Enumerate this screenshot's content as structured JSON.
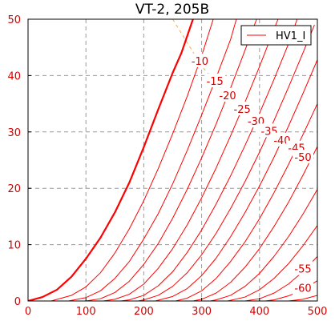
{
  "chart_data": {
    "type": "line",
    "title": "VT-2, 205B",
    "xlabel": "",
    "ylabel": "",
    "xlim": [
      0,
      500
    ],
    "ylim": [
      0,
      50
    ],
    "xticks": [
      0,
      100,
      200,
      300,
      400,
      500
    ],
    "yticks": [
      0,
      10,
      20,
      30,
      40,
      50
    ],
    "grid": true,
    "legend": {
      "position": "top-right",
      "entries": [
        "HV1_I"
      ]
    },
    "colors": {
      "curve": "#ff0000",
      "label": "#d40000",
      "dissipation": "#f0b040",
      "grid": "#9a9a9a"
    },
    "series": [
      {
        "name": "HV1_I",
        "curve_label": "",
        "points": [
          [
            0,
            0
          ],
          [
            25,
            0.7
          ],
          [
            50,
            2
          ],
          [
            75,
            4.3
          ],
          [
            100,
            7.5
          ],
          [
            125,
            11.2
          ],
          [
            150,
            15.7
          ],
          [
            175,
            21
          ],
          [
            200,
            27.3
          ],
          [
            225,
            34
          ],
          [
            250,
            40.5
          ],
          [
            265,
            44
          ],
          [
            275,
            47
          ],
          [
            285,
            50
          ]
        ]
      },
      {
        "curve_label": "-10",
        "points": [
          [
            40,
            0
          ],
          [
            75,
            1
          ],
          [
            100,
            2.5
          ],
          [
            125,
            5
          ],
          [
            150,
            8.5
          ],
          [
            175,
            12.8
          ],
          [
            200,
            17.8
          ],
          [
            225,
            23.5
          ],
          [
            250,
            29.7
          ],
          [
            275,
            36.3
          ],
          [
            300,
            43.5
          ],
          [
            320,
            50
          ]
        ]
      },
      {
        "curve_label": "-15",
        "points": [
          [
            70,
            0
          ],
          [
            100,
            0.6
          ],
          [
            125,
            1.8
          ],
          [
            150,
            4
          ],
          [
            175,
            7
          ],
          [
            200,
            11
          ],
          [
            225,
            15.5
          ],
          [
            250,
            20.8
          ],
          [
            275,
            26.7
          ],
          [
            300,
            33
          ],
          [
            325,
            39.6
          ],
          [
            350,
            46.4
          ],
          [
            360,
            50
          ]
        ]
      },
      {
        "curve_label": "-20",
        "points": [
          [
            100,
            0
          ],
          [
            125,
            0.4
          ],
          [
            150,
            1.5
          ],
          [
            175,
            3.5
          ],
          [
            200,
            6.5
          ],
          [
            225,
            10.2
          ],
          [
            250,
            14.7
          ],
          [
            275,
            19.8
          ],
          [
            300,
            25.4
          ],
          [
            325,
            31.4
          ],
          [
            350,
            37.8
          ],
          [
            375,
            44.5
          ],
          [
            395,
            50
          ]
        ]
      },
      {
        "curve_label": "-25",
        "points": [
          [
            130,
            0
          ],
          [
            150,
            0.3
          ],
          [
            175,
            1.2
          ],
          [
            200,
            3
          ],
          [
            225,
            5.8
          ],
          [
            250,
            9.3
          ],
          [
            275,
            13.5
          ],
          [
            300,
            18.3
          ],
          [
            325,
            23.6
          ],
          [
            350,
            29.3
          ],
          [
            375,
            35.3
          ],
          [
            400,
            41.6
          ],
          [
            425,
            48.2
          ],
          [
            432,
            50
          ]
        ]
      },
      {
        "curve_label": "-30",
        "points": [
          [
            160,
            0
          ],
          [
            175,
            0.2
          ],
          [
            200,
            1
          ],
          [
            225,
            2.7
          ],
          [
            250,
            5.2
          ],
          [
            275,
            8.6
          ],
          [
            300,
            12.6
          ],
          [
            325,
            17.2
          ],
          [
            350,
            22.2
          ],
          [
            375,
            27.6
          ],
          [
            400,
            33.3
          ],
          [
            425,
            39.3
          ],
          [
            450,
            45.6
          ],
          [
            465,
            50
          ]
        ]
      },
      {
        "curve_label": "-35",
        "points": [
          [
            190,
            0
          ],
          [
            200,
            0.2
          ],
          [
            225,
            1
          ],
          [
            250,
            2.6
          ],
          [
            275,
            5
          ],
          [
            300,
            8.2
          ],
          [
            325,
            12
          ],
          [
            350,
            16.4
          ],
          [
            375,
            21.2
          ],
          [
            400,
            26.4
          ],
          [
            425,
            32
          ],
          [
            450,
            37.9
          ],
          [
            475,
            44
          ],
          [
            495,
            49
          ]
        ]
      },
      {
        "curve_label": "-40",
        "points": [
          [
            220,
            0
          ],
          [
            250,
            0.8
          ],
          [
            275,
            2.2
          ],
          [
            300,
            4.5
          ],
          [
            325,
            7.6
          ],
          [
            350,
            11.4
          ],
          [
            375,
            15.7
          ],
          [
            400,
            20.4
          ],
          [
            425,
            25.5
          ],
          [
            450,
            31
          ],
          [
            475,
            36.8
          ],
          [
            500,
            42.8
          ]
        ]
      },
      {
        "curve_label": "-45",
        "points": [
          [
            255,
            0
          ],
          [
            275,
            0.5
          ],
          [
            300,
            1.8
          ],
          [
            325,
            4
          ],
          [
            350,
            7
          ],
          [
            375,
            10.5
          ],
          [
            400,
            14.6
          ],
          [
            425,
            19.2
          ],
          [
            450,
            24.2
          ],
          [
            475,
            29.5
          ],
          [
            500,
            35
          ]
        ]
      },
      {
        "curve_label": "-50",
        "points": [
          [
            285,
            0
          ],
          [
            300,
            0.3
          ],
          [
            325,
            1.4
          ],
          [
            350,
            3.3
          ],
          [
            375,
            6
          ],
          [
            400,
            9.3
          ],
          [
            425,
            13.2
          ],
          [
            450,
            17.5
          ],
          [
            475,
            22.3
          ],
          [
            500,
            27.4
          ]
        ]
      },
      {
        "curve_label": "",
        "points": [
          [
            315,
            0
          ],
          [
            325,
            0.2
          ],
          [
            350,
            1
          ],
          [
            375,
            2.6
          ],
          [
            400,
            4.9
          ],
          [
            425,
            7.9
          ],
          [
            450,
            11.4
          ],
          [
            475,
            15.4
          ],
          [
            500,
            19.8
          ]
        ]
      },
      {
        "curve_label": "",
        "points": [
          [
            345,
            0
          ],
          [
            375,
            0.7
          ],
          [
            400,
            2
          ],
          [
            425,
            4
          ],
          [
            450,
            6.6
          ],
          [
            475,
            9.8
          ],
          [
            500,
            13.4
          ]
        ]
      },
      {
        "curve_label": "-55",
        "points": [
          [
            375,
            0
          ],
          [
            400,
            0.4
          ],
          [
            425,
            1.4
          ],
          [
            450,
            3
          ],
          [
            475,
            5.2
          ],
          [
            500,
            7.9
          ]
        ]
      },
      {
        "curve_label": "-60",
        "points": [
          [
            410,
            0
          ],
          [
            425,
            0.2
          ],
          [
            450,
            0.9
          ],
          [
            475,
            2
          ],
          [
            500,
            3.6
          ]
        ]
      },
      {
        "curve_label": "",
        "points": [
          [
            450,
            0
          ],
          [
            475,
            0.3
          ],
          [
            500,
            1
          ]
        ]
      }
    ],
    "plate_dissipation": {
      "points": [
        [
          250,
          50
        ],
        [
          300,
          41.7
        ],
        [
          350,
          35.7
        ],
        [
          400,
          31.3
        ],
        [
          450,
          27.8
        ],
        [
          500,
          25
        ]
      ]
    }
  }
}
